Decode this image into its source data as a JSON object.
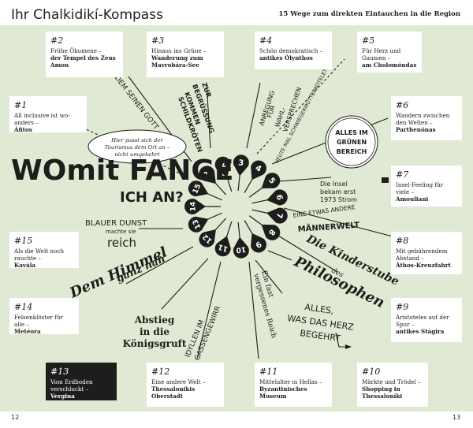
{
  "header": {
    "title": "Ihr Chalkidikí-Kompass",
    "subtitle": "15 Wege zum direkten Eintauchen in die Region"
  },
  "page_numbers": {
    "left": "12",
    "right": "13"
  },
  "colors": {
    "background": "#dfe9d3",
    "ink": "#1d1d1b",
    "card": "#ffffff"
  },
  "cards": [
    {
      "num": "#1",
      "text": "All inclusive ist wo­anders –",
      "highlight": "Áfitos"
    },
    {
      "num": "#2",
      "text": "Frühe Ökumene –",
      "highlight": "der Tempel des Zeus Amon"
    },
    {
      "num": "#3",
      "text": "Hinaus ins Grüne –",
      "highlight": "Wanderung zum Mavrobára-See"
    },
    {
      "num": "#4",
      "text": "Schön demokratisch –",
      "highlight": "antikes Ólynthos"
    },
    {
      "num": "#5",
      "text": "Für Herz und Gaumen –",
      "highlight": "am Cholomóndas"
    },
    {
      "num": "#6",
      "text": "Wandern zwischen den Welten –",
      "highlight": "Parthenónas"
    },
    {
      "num": "#7",
      "text": "Insel-Feeling für viele –",
      "highlight": "Amouliani"
    },
    {
      "num": "#8",
      "text": "Mit gebührendem Abstand –",
      "highlight": "Áthos-Kreuzfahrt"
    },
    {
      "num": "#9",
      "text": "Aristoteles auf der Spur –",
      "highlight": "antikes Stágira"
    },
    {
      "num": "#10",
      "text": "Märkte und Trödel –",
      "highlight": "Shopping in Thessaloníki"
    },
    {
      "num": "#11",
      "text": "Mittelalter in Hellas –",
      "highlight": "Byzantinisches Museum"
    },
    {
      "num": "#12",
      "text": "Eine andere Welt –",
      "highlight": "Thessalonikis Oberstadt"
    },
    {
      "num": "#13",
      "text": "Vom Erdboden verschluckt –",
      "highlight": "Vergina"
    },
    {
      "num": "#14",
      "text": "Felsenklöster für alle –",
      "highlight": "Metéora"
    },
    {
      "num": "#15",
      "text": "Als die Welt noch rauchte –",
      "highlight": "Kavála"
    }
  ],
  "center_title": {
    "line1": "WOmit FANGE",
    "line2": "ICH AN?"
  },
  "compass_numbers": [
    "1",
    "2",
    "3",
    "4",
    "5",
    "6",
    "7",
    "8",
    "9",
    "10",
    "11",
    "12",
    "13",
    "14",
    "15"
  ],
  "phrases": {
    "zeus": "JEDEM SEINEN GOTT",
    "greeting_line1": "ZUR",
    "greeting_line2": "BEGRÜSSUNG",
    "greeting_line3": "KOMMEN",
    "greeting_line4": "SCHILDKRÖTEN",
    "promises_line1": "ANREGUNG",
    "promises_line2": "FÜR",
    "promises_line3": "WAHL-",
    "promises_line4": "VERSPRECHEN",
    "soup": "HEUTE MAL SCHWIEGERMUTTERKOTELETT?",
    "green_line1": "ALLES IM",
    "green_line2": "GRÜNEN",
    "green_line3": "BEREICH",
    "tourism_line1": "Hier passt sich der",
    "tourism_line2": "Tourismus dem Ort an –",
    "tourism_line3": "nicht umgekehrt",
    "island_line1": "Die Insel",
    "island_line2": "bekam erst",
    "island_line3": "1973 Strom",
    "men_line1": "EINE ETWAS ANDERE",
    "men_line2": "MÄNNERWELT",
    "philo_line1": "Die Kinderstube",
    "philo_line2": "des",
    "philo_line3": "Philosophen",
    "heart_line1": "ALLES,",
    "heart_line2": "WAS DAS HERZ",
    "heart_line3": "BEGEHRT",
    "medieval_line1": "Ein fast",
    "medieval_line2": "vergessenes Reich",
    "idyll_line1": "IDYLLEN IM",
    "idyll_line2": "GASSENGEWIRR",
    "royal_line1": "Abstieg",
    "royal_line2": "in die",
    "royal_line3": "Königsgruft",
    "sky_line1": "Dem Himmel",
    "sky_line2": "ganz nah",
    "smoke_line1": "BLAUER DUNST",
    "smoke_line2": "machte sie",
    "smoke_line3": "reich"
  }
}
